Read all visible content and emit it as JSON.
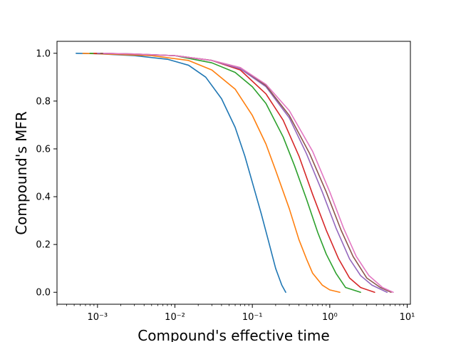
{
  "chart_data": {
    "type": "line",
    "title": "",
    "xlabel": "Compound's effective time",
    "ylabel": "Compound's MFR",
    "xscale": "log",
    "xlim": [
      0.0003,
      11
    ],
    "ylim": [
      -0.05,
      1.05
    ],
    "grid": false,
    "legend": "none",
    "x_ticks": [
      {
        "value": 0.001,
        "label": "10⁻³"
      },
      {
        "value": 0.01,
        "label": "10⁻²"
      },
      {
        "value": 0.1,
        "label": "10⁻¹"
      },
      {
        "value": 1,
        "label": "10⁰"
      },
      {
        "value": 10,
        "label": "10¹"
      }
    ],
    "y_ticks": [
      {
        "value": 0,
        "label": "0.0"
      },
      {
        "value": 0.2,
        "label": "0.2"
      },
      {
        "value": 0.4,
        "label": "0.4"
      },
      {
        "value": 0.6,
        "label": "0.6"
      },
      {
        "value": 0.8,
        "label": "0.8"
      },
      {
        "value": 1.0,
        "label": "1.0"
      }
    ],
    "series": [
      {
        "color": "#1f77b4",
        "x": [
          0.00053,
          0.001,
          0.003,
          0.008,
          0.015,
          0.025,
          0.04,
          0.06,
          0.08,
          0.1,
          0.13,
          0.16,
          0.2,
          0.24,
          0.27
        ],
        "y": [
          1.0,
          0.998,
          0.99,
          0.975,
          0.95,
          0.9,
          0.81,
          0.69,
          0.57,
          0.46,
          0.33,
          0.22,
          0.1,
          0.03,
          0.0
        ]
      },
      {
        "color": "#ff7f0e",
        "x": [
          0.00065,
          0.001,
          0.005,
          0.015,
          0.03,
          0.06,
          0.1,
          0.15,
          0.2,
          0.3,
          0.4,
          0.5,
          0.6,
          0.8,
          1.0,
          1.35
        ],
        "y": [
          1.0,
          0.998,
          0.99,
          0.97,
          0.93,
          0.85,
          0.74,
          0.62,
          0.51,
          0.35,
          0.22,
          0.14,
          0.08,
          0.03,
          0.01,
          0.0
        ]
      },
      {
        "color": "#2ca02c",
        "x": [
          0.0008,
          0.002,
          0.01,
          0.03,
          0.06,
          0.1,
          0.15,
          0.25,
          0.35,
          0.5,
          0.7,
          0.9,
          1.2,
          1.6,
          2.5
        ],
        "y": [
          1.0,
          0.998,
          0.99,
          0.96,
          0.92,
          0.86,
          0.79,
          0.65,
          0.53,
          0.39,
          0.25,
          0.16,
          0.08,
          0.02,
          0.0
        ]
      },
      {
        "color": "#d62728",
        "x": [
          0.0009,
          0.002,
          0.01,
          0.03,
          0.07,
          0.15,
          0.25,
          0.4,
          0.6,
          0.9,
          1.3,
          1.8,
          2.5,
          3.8
        ],
        "y": [
          1.0,
          0.998,
          0.99,
          0.97,
          0.93,
          0.83,
          0.72,
          0.57,
          0.41,
          0.26,
          0.14,
          0.06,
          0.02,
          0.0
        ]
      },
      {
        "color": "#9467bd",
        "x": [
          0.001,
          0.003,
          0.01,
          0.03,
          0.07,
          0.15,
          0.3,
          0.5,
          0.8,
          1.2,
          1.8,
          2.5,
          3.5,
          5.5
        ],
        "y": [
          1.0,
          0.997,
          0.99,
          0.97,
          0.935,
          0.86,
          0.73,
          0.58,
          0.42,
          0.27,
          0.14,
          0.07,
          0.03,
          0.0
        ]
      },
      {
        "color": "#8c564b",
        "x": [
          0.0011,
          0.003,
          0.01,
          0.03,
          0.07,
          0.15,
          0.3,
          0.55,
          0.9,
          1.4,
          2.0,
          3.0,
          4.5,
          6.2
        ],
        "y": [
          1.0,
          0.997,
          0.99,
          0.97,
          0.94,
          0.865,
          0.74,
          0.58,
          0.42,
          0.26,
          0.15,
          0.06,
          0.02,
          0.0
        ]
      },
      {
        "color": "#e377c2",
        "x": [
          0.0012,
          0.003,
          0.01,
          0.03,
          0.07,
          0.15,
          0.3,
          0.6,
          1.0,
          1.5,
          2.2,
          3.2,
          4.8,
          6.6
        ],
        "y": [
          1.0,
          0.997,
          0.99,
          0.97,
          0.94,
          0.87,
          0.76,
          0.59,
          0.42,
          0.27,
          0.15,
          0.07,
          0.02,
          0.0
        ]
      }
    ]
  }
}
